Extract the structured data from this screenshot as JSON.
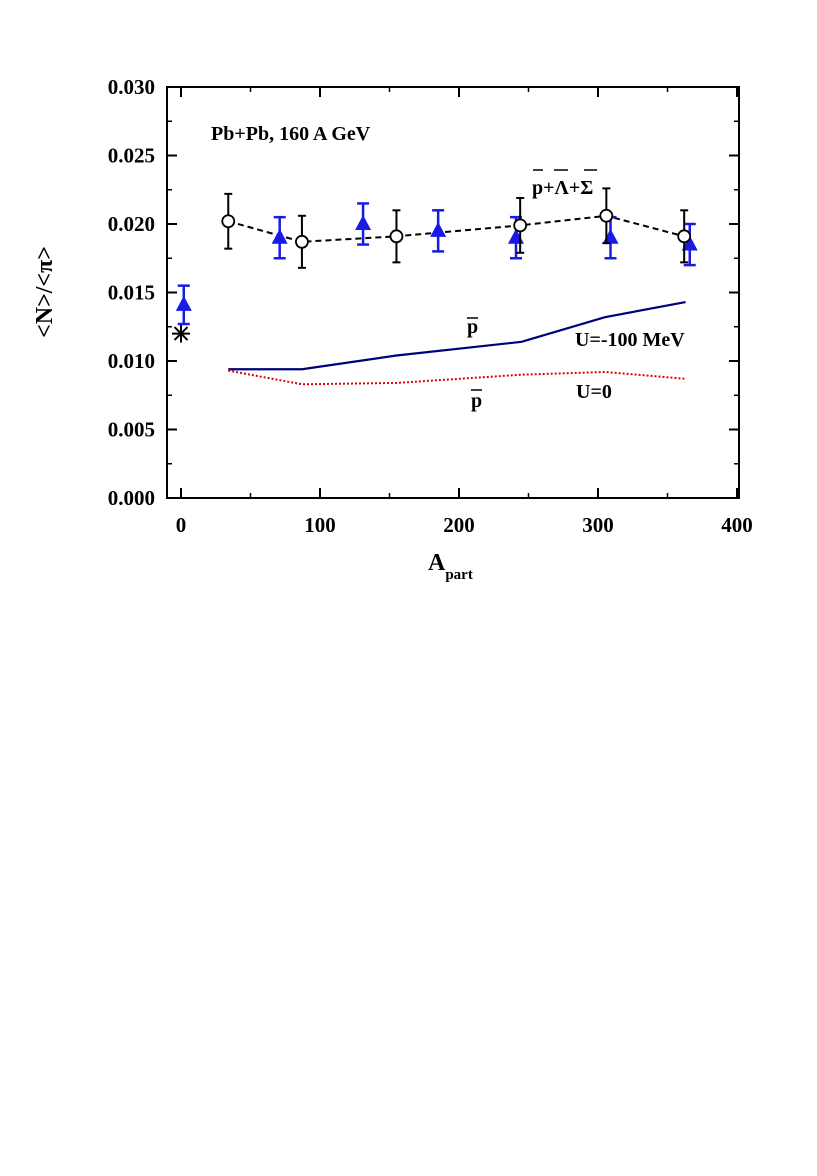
{
  "chart_data": {
    "type": "line",
    "annotation_title": "Pb+Pb,  160 A GeV",
    "xlabel_main": "A",
    "xlabel_sub": "part",
    "ylabel": "<N>/<π>",
    "xlim": [
      -10,
      400
    ],
    "ylim": [
      0.0,
      0.03
    ],
    "x_ticks": [
      0,
      100,
      200,
      300,
      400
    ],
    "y_ticks": [
      "0.000",
      "0.005",
      "0.010",
      "0.015",
      "0.020",
      "0.025",
      "0.030"
    ],
    "series": [
      {
        "name": "p+Λ+Σ (open circles)",
        "label_parts": [
          "p",
          "+",
          "Λ",
          "+",
          "Σ"
        ],
        "style": "dashed-circles",
        "color": "#000000",
        "points": [
          {
            "x": 34,
            "y": 0.0202,
            "err": 0.002
          },
          {
            "x": 87,
            "y": 0.0187,
            "err": 0.0019
          },
          {
            "x": 155,
            "y": 0.0191,
            "err": 0.0019
          },
          {
            "x": 244,
            "y": 0.0199,
            "err": 0.002
          },
          {
            "x": 306,
            "y": 0.0206,
            "err": 0.002
          },
          {
            "x": 362,
            "y": 0.0191,
            "err": 0.0019
          }
        ]
      },
      {
        "name": "data (blue triangles)",
        "style": "triangles",
        "color": "#1a1ae6",
        "points": [
          {
            "x": 2,
            "y": 0.0141,
            "err": 0.0014
          },
          {
            "x": 71,
            "y": 0.019,
            "err": 0.0015
          },
          {
            "x": 131,
            "y": 0.02,
            "err": 0.0015
          },
          {
            "x": 185,
            "y": 0.0195,
            "err": 0.0015
          },
          {
            "x": 241,
            "y": 0.019,
            "err": 0.0015
          },
          {
            "x": 309,
            "y": 0.019,
            "err": 0.0015
          },
          {
            "x": 366,
            "y": 0.0185,
            "err": 0.0015
          }
        ]
      },
      {
        "name": "p U=-100 MeV",
        "label": "U=-100 MeV",
        "label_p": "p",
        "style": "solid",
        "color": "#00007a",
        "x": [
          34,
          87,
          155,
          245,
          305,
          363
        ],
        "y": [
          0.0094,
          0.0094,
          0.0104,
          0.0114,
          0.0132,
          0.0143
        ]
      },
      {
        "name": "p U=0",
        "label": "U=0",
        "label_p": "p",
        "style": "dotted",
        "color": "#e00000",
        "x": [
          34,
          87,
          155,
          245,
          305,
          363
        ],
        "y": [
          0.0093,
          0.0083,
          0.0084,
          0.009,
          0.0092,
          0.0087
        ]
      }
    ],
    "star_point": {
      "x": 0,
      "y": 0.012
    }
  }
}
